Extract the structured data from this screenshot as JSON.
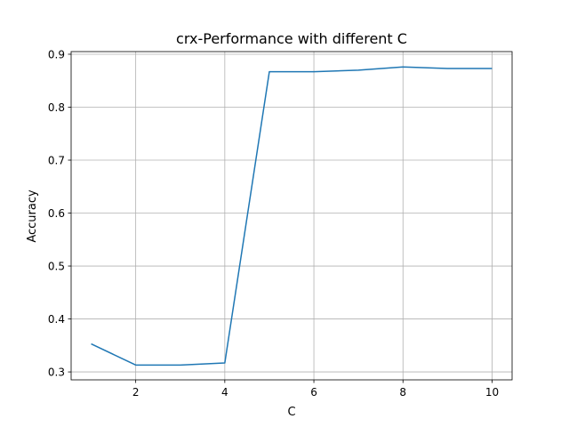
{
  "chart_data": {
    "type": "line",
    "title": "crx-Performance with different C",
    "xlabel": "C",
    "ylabel": "Accuracy",
    "xlim": [
      0.55,
      10.45
    ],
    "ylim": [
      0.285,
      0.905
    ],
    "xticks": [
      2,
      4,
      6,
      8,
      10
    ],
    "xtick_labels": [
      "2",
      "4",
      "6",
      "8",
      "10"
    ],
    "yticks": [
      0.3,
      0.4,
      0.5,
      0.6,
      0.7,
      0.8,
      0.9
    ],
    "ytick_labels": [
      "0.3",
      "0.4",
      "0.5",
      "0.6",
      "0.7",
      "0.8",
      "0.9"
    ],
    "grid": true,
    "series": [
      {
        "color": "#1f77b4",
        "x": [
          1,
          2,
          3,
          4,
          5,
          6,
          7,
          8,
          9,
          10
        ],
        "y": [
          0.353,
          0.313,
          0.313,
          0.317,
          0.867,
          0.867,
          0.87,
          0.876,
          0.873,
          0.873
        ]
      }
    ]
  }
}
